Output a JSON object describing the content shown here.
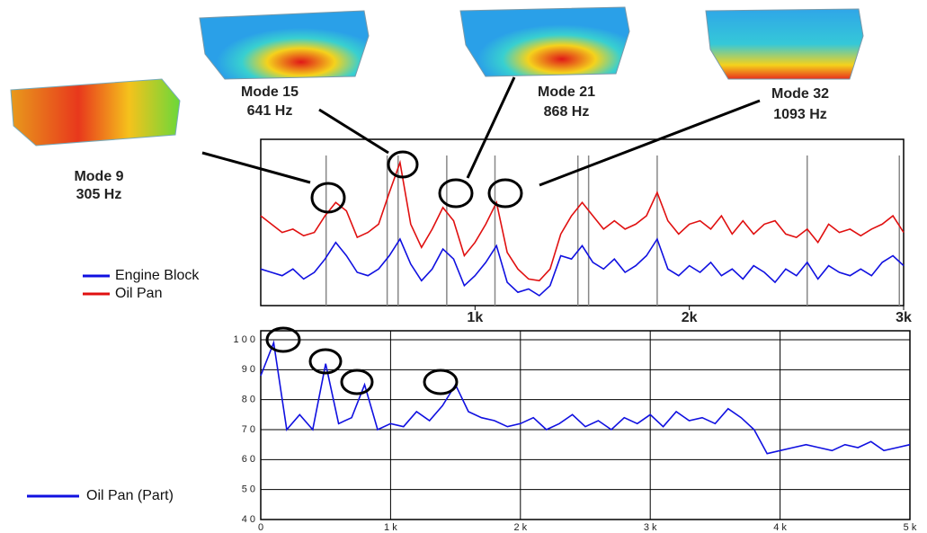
{
  "chart_data": [
    {
      "type": "line",
      "annotations": [
        {
          "label": "Mode 9",
          "freq": "305 Hz"
        },
        {
          "label": "Mode 15",
          "freq": "641 Hz"
        },
        {
          "label": "Mode 21",
          "freq": "868 Hz"
        },
        {
          "label": "Mode 32",
          "freq": "1093 Hz"
        }
      ],
      "x": [
        0,
        50,
        100,
        150,
        200,
        250,
        300,
        350,
        400,
        450,
        500,
        550,
        600,
        650,
        700,
        750,
        800,
        850,
        900,
        950,
        1000,
        1050,
        1100,
        1150,
        1200,
        1250,
        1300,
        1350,
        1400,
        1450,
        1500,
        1550,
        1600,
        1650,
        1700,
        1750,
        1800,
        1850,
        1900,
        1950,
        2000,
        2050,
        2100,
        2150,
        2200,
        2250,
        2300,
        2350,
        2400,
        2450,
        2500,
        2550,
        2600,
        2650,
        2700,
        2750,
        2800,
        2850,
        2900,
        2950,
        3000
      ],
      "series": [
        {
          "name": "Engine Block",
          "color": "#1010e0",
          "values": [
            22,
            20,
            18,
            22,
            16,
            20,
            28,
            38,
            30,
            20,
            18,
            22,
            30,
            40,
            25,
            15,
            22,
            34,
            28,
            12,
            18,
            26,
            36,
            14,
            8,
            10,
            6,
            12,
            30,
            28,
            36,
            26,
            22,
            28,
            20,
            24,
            30,
            40,
            22,
            18,
            24,
            20,
            26,
            18,
            22,
            16,
            24,
            20,
            14,
            22,
            18,
            26,
            16,
            24,
            20,
            18,
            22,
            18,
            26,
            30,
            24
          ]
        },
        {
          "name": "Oil Pan",
          "color": "#e01010",
          "values": [
            54,
            49,
            44,
            46,
            42,
            44,
            54,
            62,
            57,
            41,
            44,
            49,
            68,
            86,
            49,
            35,
            46,
            59,
            51,
            30,
            38,
            49,
            62,
            32,
            22,
            16,
            15,
            22,
            43,
            54,
            62,
            54,
            46,
            51,
            46,
            49,
            54,
            68,
            51,
            43,
            49,
            51,
            46,
            54,
            43,
            51,
            43,
            49,
            51,
            43,
            41,
            46,
            38,
            49,
            44,
            46,
            42,
            46,
            49,
            54,
            44
          ]
        }
      ],
      "mode_lines": [
        305,
        590,
        641,
        868,
        1093,
        1480,
        1530,
        1850,
        2550,
        2980
      ],
      "xlim": [
        0,
        3000
      ],
      "xticks": [
        {
          "value": 1000,
          "label": "1k"
        },
        {
          "value": 2000,
          "label": "2k"
        },
        {
          "value": 3000,
          "label": "3k"
        }
      ],
      "ylim": [
        0,
        100
      ],
      "grid": false
    },
    {
      "type": "line",
      "x": [
        0,
        100,
        200,
        300,
        400,
        500,
        600,
        700,
        800,
        900,
        1000,
        1100,
        1200,
        1300,
        1400,
        1500,
        1600,
        1700,
        1800,
        1900,
        2000,
        2100,
        2200,
        2300,
        2400,
        2500,
        2600,
        2700,
        2800,
        2900,
        3000,
        3100,
        3200,
        3300,
        3400,
        3500,
        3600,
        3700,
        3800,
        3900,
        4000,
        4100,
        4200,
        4300,
        4400,
        4500,
        4600,
        4700,
        4800,
        4900,
        5000
      ],
      "series": [
        {
          "name": "Oil Pan (Part)",
          "color": "#1010e0",
          "values": [
            88,
            99,
            70,
            75,
            70,
            92,
            72,
            74,
            85,
            70,
            72,
            71,
            76,
            73,
            78,
            85,
            76,
            74,
            73,
            71,
            72,
            74,
            70,
            72,
            75,
            71,
            73,
            70,
            74,
            72,
            75,
            71,
            76,
            73,
            74,
            72,
            77,
            74,
            70,
            62,
            63,
            64,
            65,
            64,
            63,
            65,
            64,
            66,
            63,
            64,
            65
          ]
        }
      ],
      "xlim": [
        0,
        5000
      ],
      "xticks": [
        0,
        {
          "value": 1000,
          "label": "1 k"
        },
        {
          "value": 2000,
          "label": "2 k"
        },
        {
          "value": 3000,
          "label": "3 k"
        },
        {
          "value": 4000,
          "label": "4 k"
        },
        {
          "value": 5000,
          "label": "5 k"
        }
      ],
      "ylim": [
        40,
        103
      ],
      "yticks": [
        {
          "value": 40,
          "label": "4 0"
        },
        {
          "value": 50,
          "label": "5 0"
        },
        {
          "value": 60,
          "label": "6 0"
        },
        {
          "value": 70,
          "label": "7 0"
        },
        {
          "value": 80,
          "label": "8 0"
        },
        {
          "value": 90,
          "label": "9 0"
        },
        {
          "value": 100,
          "label": "1 0 0"
        }
      ],
      "grid": true
    }
  ]
}
